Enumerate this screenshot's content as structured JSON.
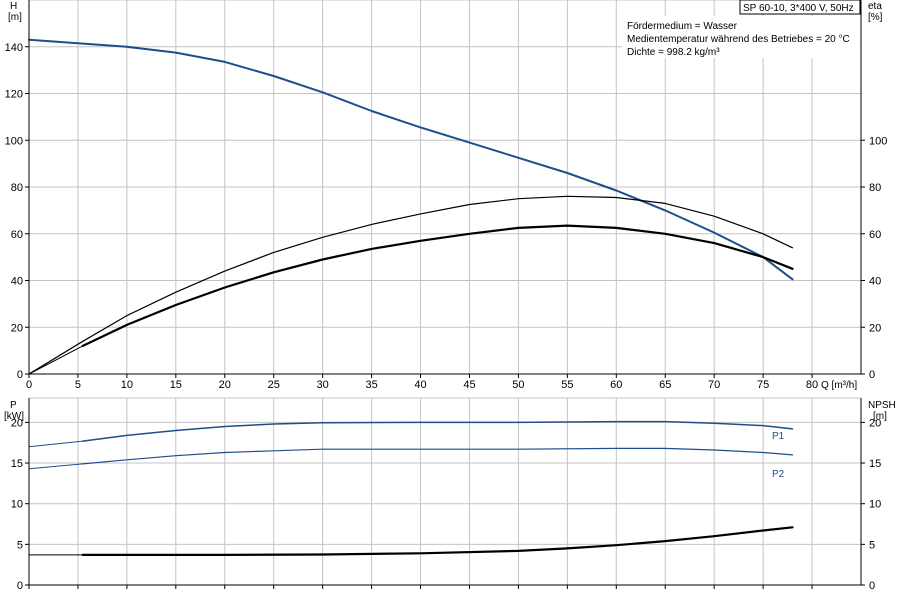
{
  "title_box": "SP 60-10, 3*400 V, 50Hz",
  "info_lines": [
    "Fördermedium = Wasser",
    "Medientemperatur während des Betriebes = 20 °C",
    "Dichte = 998.2 kg/m³"
  ],
  "colors": {
    "blue": "#1f4e8c",
    "black": "#000000",
    "grid": "#c4c4c4"
  },
  "chart_data": [
    {
      "type": "line",
      "panel": "top",
      "xlabel": "Q [m³/h]",
      "x_ticks": [
        0,
        5,
        10,
        15,
        20,
        25,
        30,
        35,
        40,
        45,
        50,
        55,
        60,
        65,
        70,
        75,
        80
      ],
      "xlim": [
        0,
        85
      ],
      "left_axis": {
        "label_line1": "H",
        "label_line2": "[m]",
        "ylim": [
          0,
          160
        ],
        "ticks": [
          0,
          20,
          40,
          60,
          80,
          100,
          120,
          140
        ]
      },
      "right_axis": {
        "label_line1": "eta",
        "label_line2": "[%]",
        "ylim": [
          0,
          160
        ],
        "ticks": [
          0,
          20,
          40,
          60,
          80,
          100
        ]
      },
      "series": [
        {
          "id": "H-curve",
          "axis": "left",
          "color": "#1f4e8c",
          "width": 2,
          "points": [
            [
              0,
              143
            ],
            [
              5,
              141.5
            ],
            [
              10,
              140
            ],
            [
              15,
              137.5
            ],
            [
              20,
              133.5
            ],
            [
              25,
              127.5
            ],
            [
              30,
              120.5
            ],
            [
              35,
              112.5
            ],
            [
              40,
              105.5
            ],
            [
              45,
              99
            ],
            [
              50,
              92.5
            ],
            [
              55,
              86
            ],
            [
              60,
              78.5
            ],
            [
              65,
              70
            ],
            [
              70,
              60.5
            ],
            [
              75,
              50
            ],
            [
              78,
              40.5
            ]
          ]
        },
        {
          "id": "H-curve-extension",
          "axis": "left",
          "color": "#1f4e8c",
          "width": 1,
          "points": [
            [
              0,
              143
            ],
            [
              5,
              141.5
            ]
          ]
        },
        {
          "id": "eta-curve-thin",
          "axis": "right",
          "color": "#000000",
          "width": 1.2,
          "points": [
            [
              0,
              0
            ],
            [
              5.5,
              14
            ],
            [
              10,
              25
            ],
            [
              15,
              35
            ],
            [
              20,
              44
            ],
            [
              25,
              52
            ],
            [
              30,
              58.5
            ],
            [
              35,
              64
            ],
            [
              40,
              68.5
            ],
            [
              45,
              72.5
            ],
            [
              50,
              75
            ],
            [
              55,
              76
            ],
            [
              60,
              75.5
            ],
            [
              65,
              73
            ],
            [
              70,
              67.5
            ],
            [
              75,
              60
            ],
            [
              78,
              54
            ]
          ]
        },
        {
          "id": "eta-curve-bold",
          "axis": "right",
          "color": "#000000",
          "width": 2.2,
          "points": [
            [
              5.5,
              12
            ],
            [
              10,
              21
            ],
            [
              15,
              29.5
            ],
            [
              20,
              37
            ],
            [
              25,
              43.5
            ],
            [
              30,
              49
            ],
            [
              35,
              53.5
            ],
            [
              40,
              57
            ],
            [
              45,
              60
            ],
            [
              50,
              62.5
            ],
            [
              55,
              63.5
            ],
            [
              60,
              62.5
            ],
            [
              65,
              60
            ],
            [
              70,
              56
            ],
            [
              75,
              50
            ],
            [
              78,
              45
            ]
          ]
        },
        {
          "id": "eta-curve-lead",
          "axis": "right",
          "color": "#000000",
          "width": 1,
          "points": [
            [
              0,
              0
            ],
            [
              5.5,
              12
            ]
          ]
        }
      ]
    },
    {
      "type": "line",
      "panel": "bottom",
      "x_ticks": [
        0,
        5,
        10,
        15,
        20,
        25,
        30,
        35,
        40,
        45,
        50,
        55,
        60,
        65,
        70,
        75,
        80
      ],
      "xlim": [
        0,
        85
      ],
      "left_axis": {
        "label_line1": "P",
        "label_line2": "[kW]",
        "ylim": [
          0,
          23
        ],
        "ticks": [
          0,
          5,
          10,
          15,
          20
        ]
      },
      "right_axis": {
        "label_line1": "NPSH",
        "label_line2": "[m]",
        "ylim": [
          0,
          23
        ],
        "ticks": [
          0,
          5,
          10,
          15,
          20
        ]
      },
      "series": [
        {
          "id": "P1-curve",
          "name": "P1",
          "axis": "left",
          "color": "#1f4e8c",
          "width": 1.5,
          "points": [
            [
              5.5,
              17.7
            ],
            [
              10,
              18.4
            ],
            [
              15,
              19
            ],
            [
              20,
              19.5
            ],
            [
              25,
              19.8
            ],
            [
              30,
              19.95
            ],
            [
              40,
              20
            ],
            [
              50,
              20
            ],
            [
              60,
              20.1
            ],
            [
              65,
              20.1
            ],
            [
              70,
              19.9
            ],
            [
              75,
              19.6
            ],
            [
              78,
              19.2
            ]
          ]
        },
        {
          "id": "P1-extension",
          "axis": "left",
          "color": "#1f4e8c",
          "width": 1,
          "points": [
            [
              0,
              17
            ],
            [
              5.5,
              17.7
            ]
          ]
        },
        {
          "id": "P2-curve",
          "name": "P2",
          "axis": "left",
          "color": "#1f4e8c",
          "width": 1.2,
          "points": [
            [
              5.5,
              14.9
            ],
            [
              10,
              15.4
            ],
            [
              15,
              15.9
            ],
            [
              20,
              16.3
            ],
            [
              25,
              16.5
            ],
            [
              30,
              16.7
            ],
            [
              40,
              16.7
            ],
            [
              50,
              16.7
            ],
            [
              60,
              16.8
            ],
            [
              65,
              16.8
            ],
            [
              70,
              16.6
            ],
            [
              75,
              16.3
            ],
            [
              78,
              16
            ]
          ]
        },
        {
          "id": "P2-extension",
          "axis": "left",
          "color": "#1f4e8c",
          "width": 1,
          "points": [
            [
              0,
              14.3
            ],
            [
              5.5,
              14.9
            ]
          ]
        },
        {
          "id": "NPSH-curve",
          "axis": "right",
          "color": "#000000",
          "width": 2.2,
          "points": [
            [
              5.5,
              3.7
            ],
            [
              10,
              3.7
            ],
            [
              20,
              3.7
            ],
            [
              30,
              3.75
            ],
            [
              40,
              3.9
            ],
            [
              50,
              4.2
            ],
            [
              55,
              4.5
            ],
            [
              60,
              4.9
            ],
            [
              65,
              5.4
            ],
            [
              70,
              6
            ],
            [
              75,
              6.7
            ],
            [
              78,
              7.1
            ]
          ]
        },
        {
          "id": "NPSH-extension",
          "axis": "right",
          "color": "#000000",
          "width": 1,
          "points": [
            [
              0,
              3.7
            ],
            [
              5.5,
              3.7
            ]
          ]
        }
      ]
    }
  ]
}
